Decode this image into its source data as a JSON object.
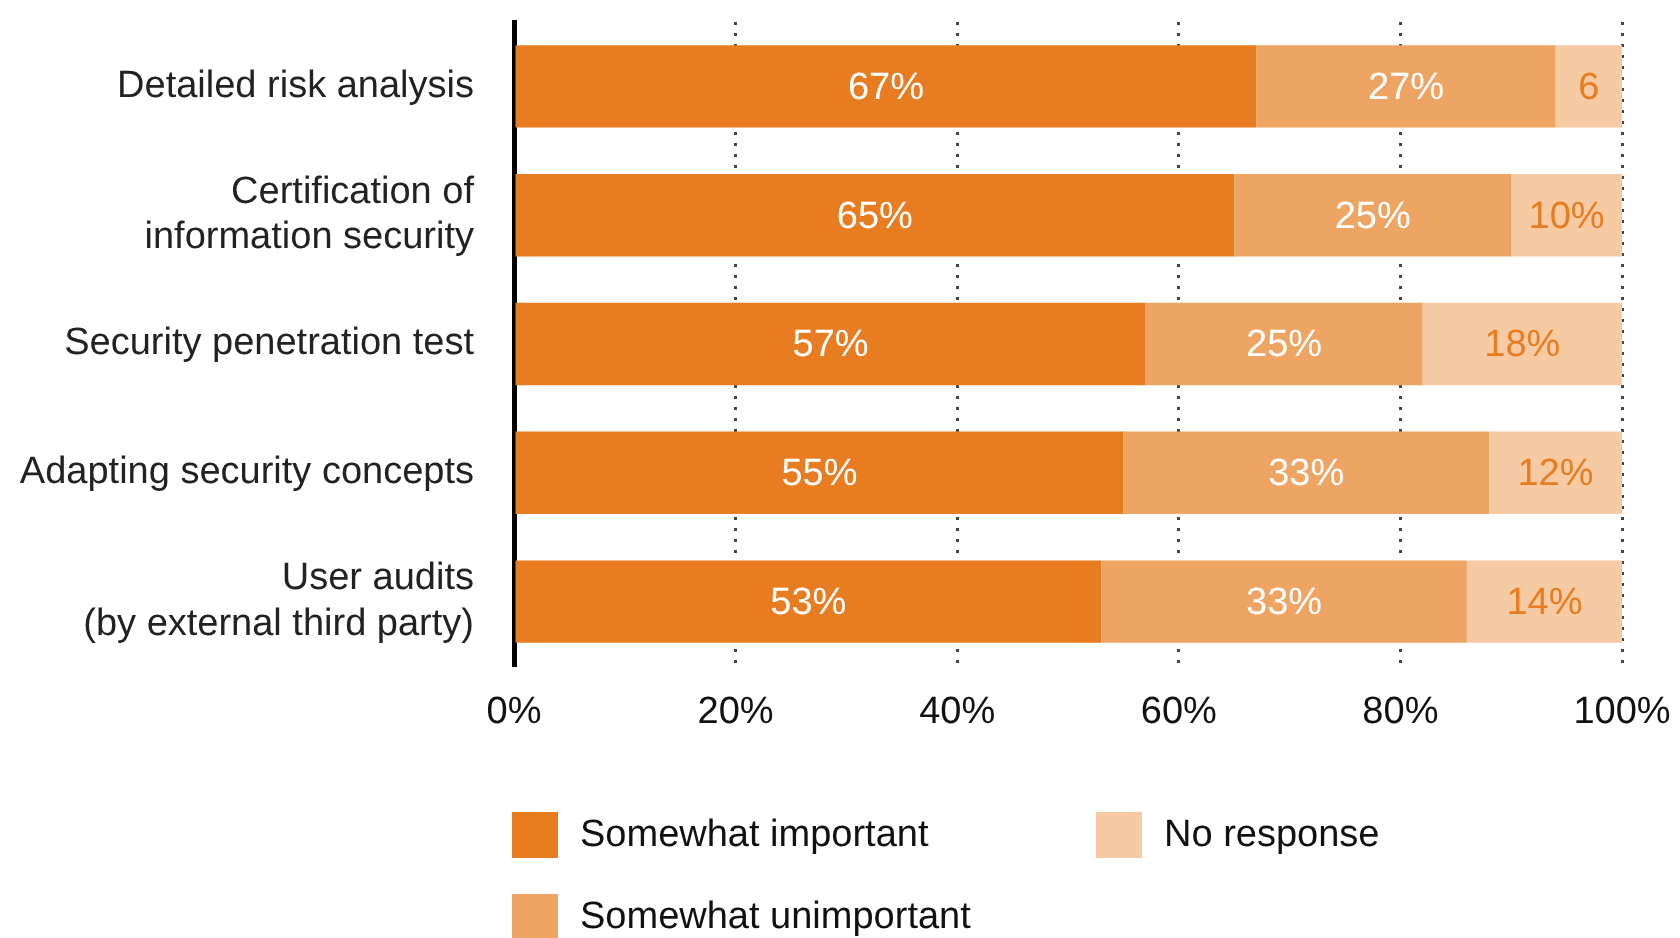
{
  "chart_data": {
    "type": "bar",
    "orientation": "horizontal",
    "stacked": true,
    "categories": [
      "Detailed risk analysis",
      "Certification of\ninformation security",
      "Security penetration test",
      "Adapting security concepts",
      "User audits\n(by external third party)"
    ],
    "series": [
      {
        "name": "Somewhat important",
        "color": "#e77d20",
        "values": [
          67,
          65,
          57,
          55,
          53
        ],
        "value_labels": [
          "67%",
          "65%",
          "57%",
          "55%",
          "53%"
        ]
      },
      {
        "name": "Somewhat unimportant",
        "color": "#eea563",
        "values": [
          27,
          25,
          25,
          33,
          33
        ],
        "value_labels": [
          "27%",
          "25%",
          "25%",
          "33%",
          "33%"
        ]
      },
      {
        "name": "No response",
        "color": "#f6caa3",
        "values": [
          6,
          10,
          18,
          12,
          14
        ],
        "value_labels": [
          "6",
          "10%",
          "18%",
          "12%",
          "14%"
        ]
      }
    ],
    "xlim": [
      0,
      100
    ],
    "xticks": [
      {
        "value": 0,
        "label": "0%"
      },
      {
        "value": 20,
        "label": "20%"
      },
      {
        "value": 40,
        "label": "40%"
      },
      {
        "value": 60,
        "label": "60%"
      },
      {
        "value": 80,
        "label": "80%"
      },
      {
        "value": 100,
        "label": "100%"
      }
    ],
    "grid": "x",
    "legend": "bottom"
  }
}
